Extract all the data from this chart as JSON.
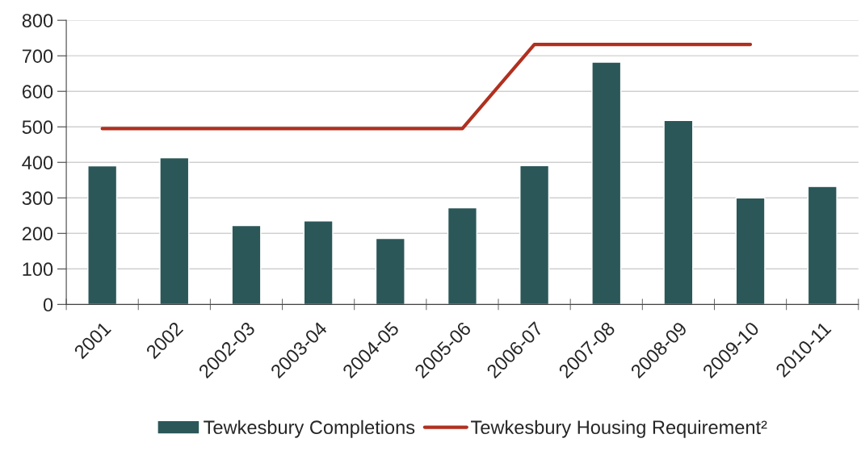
{
  "chart_data": {
    "type": "bar",
    "categories": [
      "2001",
      "2002",
      "2002-03",
      "2003-04",
      "2004-05",
      "2005-06",
      "2006-07",
      "2007-08",
      "2008-09",
      "2009-10",
      "2010-11"
    ],
    "series": [
      {
        "name": "Tewkesbury Completions",
        "color": "#2b5759",
        "values": [
          390,
          413,
          222,
          235,
          186,
          272,
          391,
          682,
          518,
          300,
          332
        ]
      },
      {
        "name": "Tewkesbury Housing Requirement²",
        "type": "line",
        "color": "#b03020",
        "values": [
          495,
          495,
          495,
          495,
          495,
          495,
          732,
          732,
          732,
          732,
          null
        ]
      }
    ],
    "ylim": [
      0,
      800
    ],
    "yticks": [
      0,
      100,
      200,
      300,
      400,
      500,
      600,
      700,
      800
    ],
    "grid": "y",
    "legend": "bottom",
    "marker": "none",
    "line_style": "solid"
  }
}
